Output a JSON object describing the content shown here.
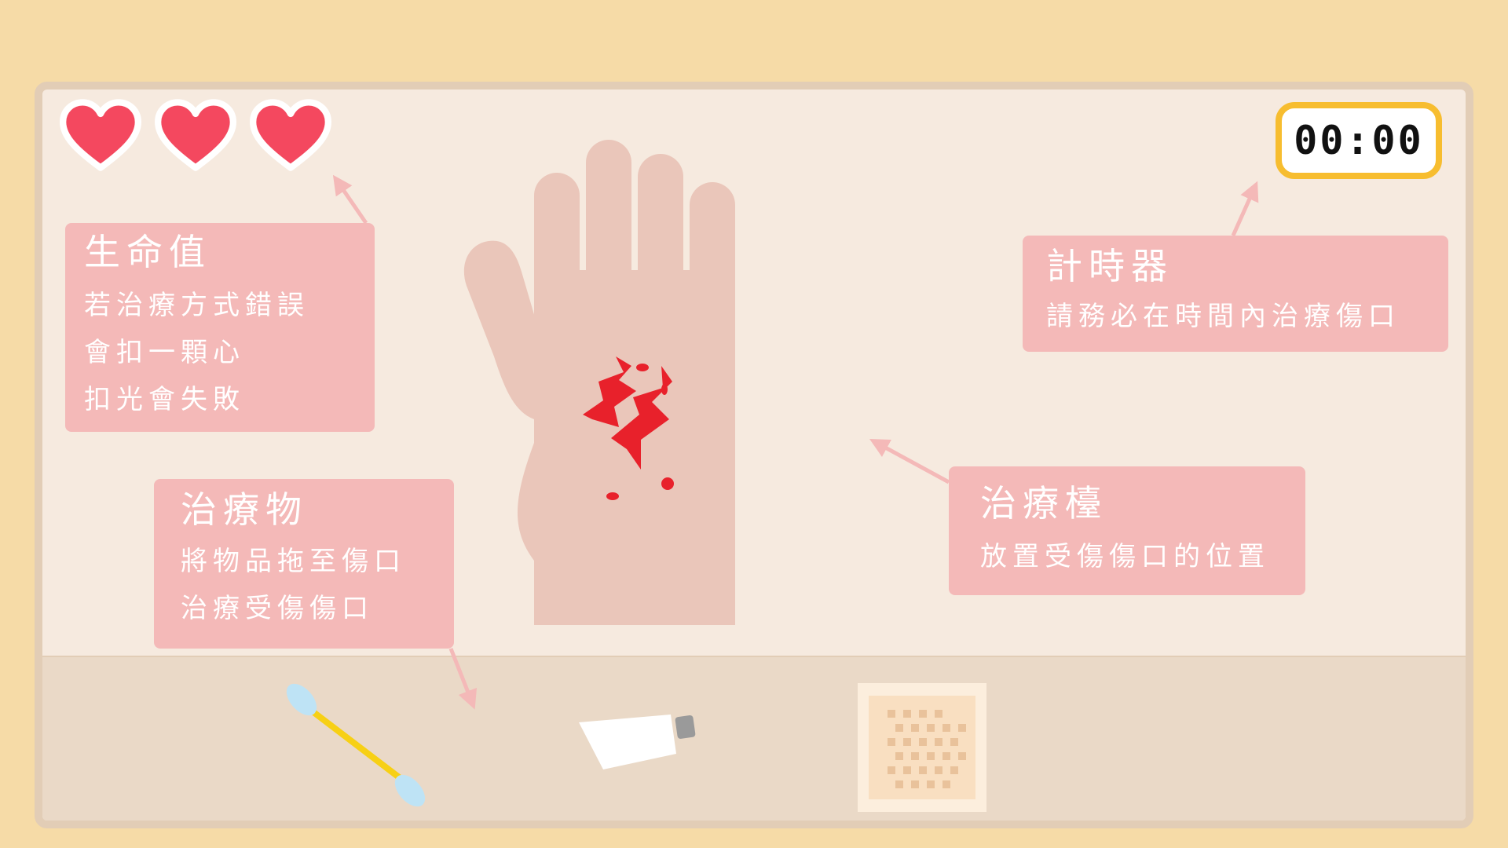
{
  "hud": {
    "lives": {
      "current": 3,
      "max": 3
    },
    "timer": "00:00"
  },
  "tips": {
    "health": {
      "title": "生命值",
      "lines": [
        "若治療方式錯誤",
        "會扣一顆心",
        "扣光會失敗"
      ]
    },
    "timer": {
      "title": "計時器",
      "lines": [
        "請務必在時間內治療傷口"
      ]
    },
    "station": {
      "title": "治療檯",
      "lines": [
        "放置受傷傷口的位置"
      ]
    },
    "items": {
      "title": "治療物",
      "lines": [
        "將物品拖至傷口",
        "治療受傷傷口"
      ]
    }
  },
  "tray_items": [
    "cotton-swab",
    "ointment-tube",
    "bandage"
  ],
  "colors": {
    "background": "#F6DBA7",
    "panel": "#F6EADF",
    "tray": "#EAD9C7",
    "card": "#F4B9B8",
    "heart": "#F4485F",
    "timer_border": "#F7BD2F",
    "wound": "#E8212B",
    "skin": "#EAC6BA"
  }
}
